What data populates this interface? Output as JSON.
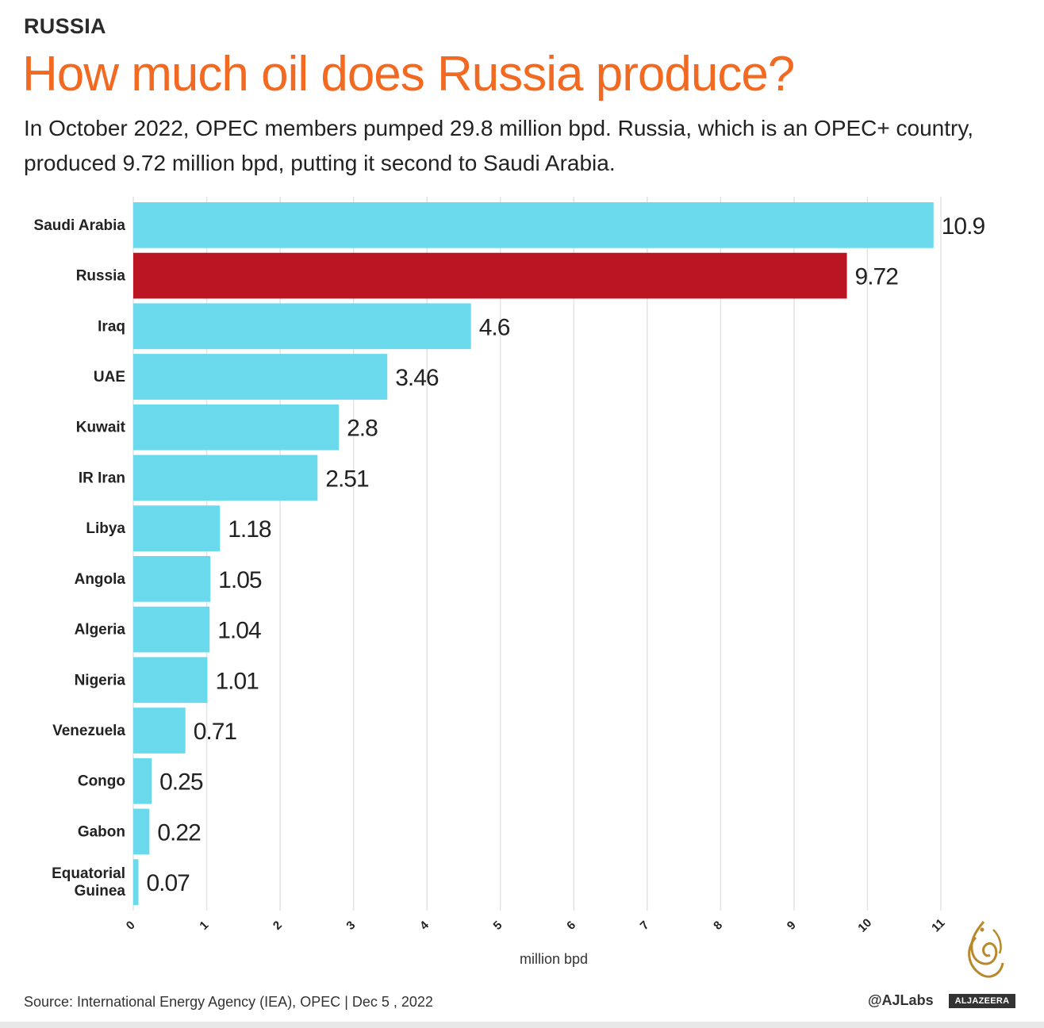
{
  "header": {
    "kicker": "RUSSIA",
    "title": "How much oil does Russia produce?",
    "subtitle": "In October 2022, OPEC members pumped 29.8 million bpd. Russia, which is an OPEC+ country, produced 9.72 million bpd, putting it second to Saudi Arabia."
  },
  "colors": {
    "bar": "#6ad9ec",
    "highlight": "#bb1423",
    "title": "#f26a22",
    "grid": "#e3e3e3"
  },
  "chart_data": {
    "type": "bar",
    "orientation": "horizontal",
    "categories": [
      "Saudi Arabia",
      "Russia",
      "Iraq",
      "UAE",
      "Kuwait",
      "IR Iran",
      "Libya",
      "Angola",
      "Algeria",
      "Nigeria",
      "Venezuela",
      "Congo",
      "Gabon",
      "Equatorial Guinea"
    ],
    "category_lines": [
      [
        "Saudi Arabia"
      ],
      [
        "Russia"
      ],
      [
        "Iraq"
      ],
      [
        "UAE"
      ],
      [
        "Kuwait"
      ],
      [
        "IR Iran"
      ],
      [
        "Libya"
      ],
      [
        "Angola"
      ],
      [
        "Algeria"
      ],
      [
        "Nigeria"
      ],
      [
        "Venezuela"
      ],
      [
        "Congo"
      ],
      [
        "Gabon"
      ],
      [
        "Equatorial",
        "Guinea"
      ]
    ],
    "values": [
      10.9,
      9.72,
      4.6,
      3.46,
      2.8,
      2.51,
      1.18,
      1.05,
      1.04,
      1.01,
      0.71,
      0.25,
      0.22,
      0.07
    ],
    "value_labels": [
      "10.9",
      "9.72",
      "4.6",
      "3.46",
      "2.8",
      "2.51",
      "1.18",
      "1.05",
      "1.04",
      "1.01",
      "0.71",
      "0.25",
      "0.22",
      "0.07"
    ],
    "highlight": "Russia",
    "xlabel": "million bpd",
    "xlim": [
      0,
      11
    ],
    "xticks": [
      0,
      1,
      2,
      3,
      4,
      5,
      6,
      7,
      8,
      9,
      10,
      11
    ],
    "grid": true
  },
  "footer": {
    "source": "Source: International Energy Agency (IEA), OPEC |  Dec 5 , 2022",
    "handle": "@AJLabs",
    "brand": "ALJAZEERA"
  }
}
